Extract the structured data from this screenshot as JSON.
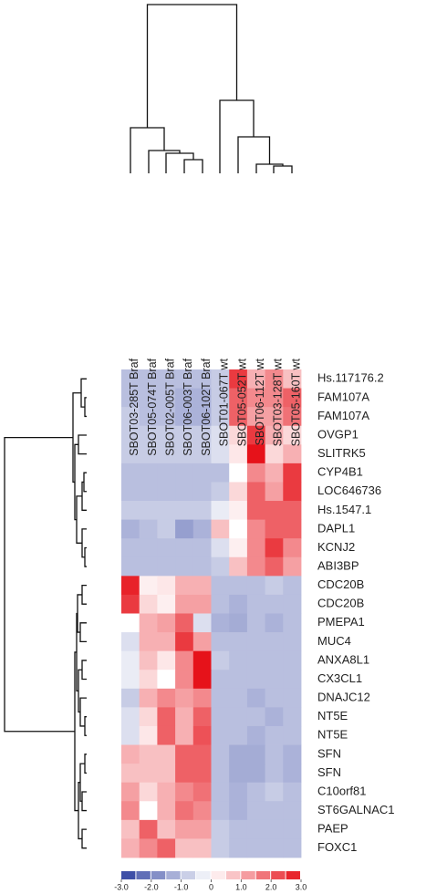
{
  "chart_data": {
    "type": "heatmap",
    "categories": [
      "SBOT03-285T Braf",
      "SBOT05-074T Braf",
      "SBOT02-005T Braf",
      "SBOT06-003T Braf",
      "SBOT06-102T Braf",
      "SBOT01-067T wt",
      "SBOT05-052T wt",
      "SBOT06-112T wt",
      "SBOT03-128T wt",
      "SBOT05-160T wt"
    ],
    "rows": [
      "Hs.117176.2",
      "FAM107A",
      "FAM107A",
      "OVGP1",
      "SLITRK5",
      "CYP4B1",
      "LOC646736",
      "Hs.1547.1",
      "DAPL1",
      "KCNJ2",
      "ABI3BP",
      "CDC20B",
      "CDC20B",
      "PMEPA1",
      "MUC4",
      "ANXA8L1",
      "CX3CL1",
      "DNAJC12",
      "NT5E",
      "NT5E",
      "SFN",
      "SFN",
      "C10orf81",
      "ST6GALNAC1",
      "PAEP",
      "FOXC1"
    ],
    "values": [
      [
        -1,
        -1,
        -1,
        -1,
        -1,
        -0.8,
        2.5,
        1,
        1.5,
        0.8
      ],
      [
        -1,
        -1,
        -1,
        -1.2,
        -1.2,
        -0.8,
        2,
        1.5,
        1.5,
        2
      ],
      [
        -0.8,
        -1,
        -1,
        -1.2,
        -1.2,
        -0.8,
        2,
        1.2,
        1.2,
        1.8
      ],
      [
        -0.8,
        -0.8,
        -0.8,
        -0.8,
        -0.8,
        -0.5,
        0.5,
        2.5,
        1,
        0.5
      ],
      [
        -0.8,
        -0.8,
        -0.8,
        -0.8,
        -0.8,
        -0.5,
        0.3,
        3,
        0.5,
        1
      ],
      [
        -1,
        -1,
        -1,
        -1,
        -1,
        -1,
        0,
        1.5,
        1,
        2.5
      ],
      [
        -1,
        -1,
        -1,
        -1,
        -1,
        -0.8,
        0.5,
        2,
        1.2,
        2.5
      ],
      [
        -0.8,
        -0.8,
        -0.8,
        -0.8,
        -0.8,
        -0.3,
        0.2,
        2,
        2,
        2
      ],
      [
        -1.2,
        -1,
        -0.8,
        -1.5,
        -1.2,
        0.8,
        0,
        1.5,
        2,
        2
      ],
      [
        -1,
        -1,
        -1,
        -1,
        -1,
        -0.5,
        0.2,
        1.5,
        2.5,
        1.5
      ],
      [
        -1,
        -1,
        -1,
        -1,
        -1,
        -0.8,
        0.8,
        1.5,
        2,
        1.2
      ],
      [
        2.8,
        0.2,
        0.3,
        1,
        1,
        -1,
        -1,
        -1,
        -0.8,
        -1
      ],
      [
        2.5,
        0.5,
        0.2,
        1.2,
        1.2,
        -1,
        -1.2,
        -1,
        -1,
        -1
      ],
      [
        0,
        1,
        1.2,
        2,
        -0.5,
        -1.2,
        -1.3,
        -1,
        -1.2,
        -1
      ],
      [
        -0.5,
        1,
        1,
        2.5,
        1.2,
        -1,
        -1,
        -1,
        -1,
        -1
      ],
      [
        -0.3,
        0.8,
        0.3,
        1.5,
        3,
        -0.8,
        -1,
        -1,
        -1,
        -1
      ],
      [
        -0.3,
        0.5,
        0,
        1.5,
        3,
        -1,
        -1,
        -1,
        -1,
        -1
      ],
      [
        -0.8,
        1,
        1.5,
        1.2,
        1.5,
        -1,
        -1,
        -1.2,
        -1,
        -1
      ],
      [
        -0.5,
        0.5,
        2,
        1,
        2,
        -1,
        -1,
        -1,
        -1.2,
        -1
      ],
      [
        -0.5,
        0.3,
        2,
        1,
        2.2,
        -1,
        -1,
        -1.2,
        -1,
        -1
      ],
      [
        1,
        0.8,
        0.8,
        2,
        2,
        -1,
        -1.3,
        -1.3,
        -1,
        -1.2
      ],
      [
        0.8,
        0.8,
        0.8,
        2,
        2,
        -1,
        -1.3,
        -1.3,
        -1,
        -1.2
      ],
      [
        1.2,
        0.5,
        1,
        1.5,
        1.8,
        -1,
        -1.2,
        -1,
        -0.8,
        -1
      ],
      [
        1.5,
        0,
        1,
        1.8,
        1.5,
        -1,
        -1.2,
        -1,
        -1,
        -1
      ],
      [
        0.8,
        2,
        0.8,
        1.2,
        1.2,
        -0.8,
        -1,
        -1,
        -1,
        -1
      ],
      [
        1,
        1.5,
        2,
        0.8,
        0.8,
        -0.8,
        -1,
        -1,
        -1,
        -1
      ]
    ],
    "zlim": [
      -3,
      3
    ],
    "zticks": [
      {
        "value": -3,
        "label": "-3.0"
      },
      {
        "value": -2,
        "label": "-2.0"
      },
      {
        "value": -1,
        "label": "-1.0"
      },
      0,
      {
        "value": 1,
        "label": "1.0"
      },
      {
        "value": 2,
        "label": "2.0"
      },
      {
        "value": 3,
        "label": "3.0"
      }
    ],
    "colors": {
      "low": "#2c3f9f",
      "mid": "#ffffff",
      "high": "#e6121a"
    }
  }
}
